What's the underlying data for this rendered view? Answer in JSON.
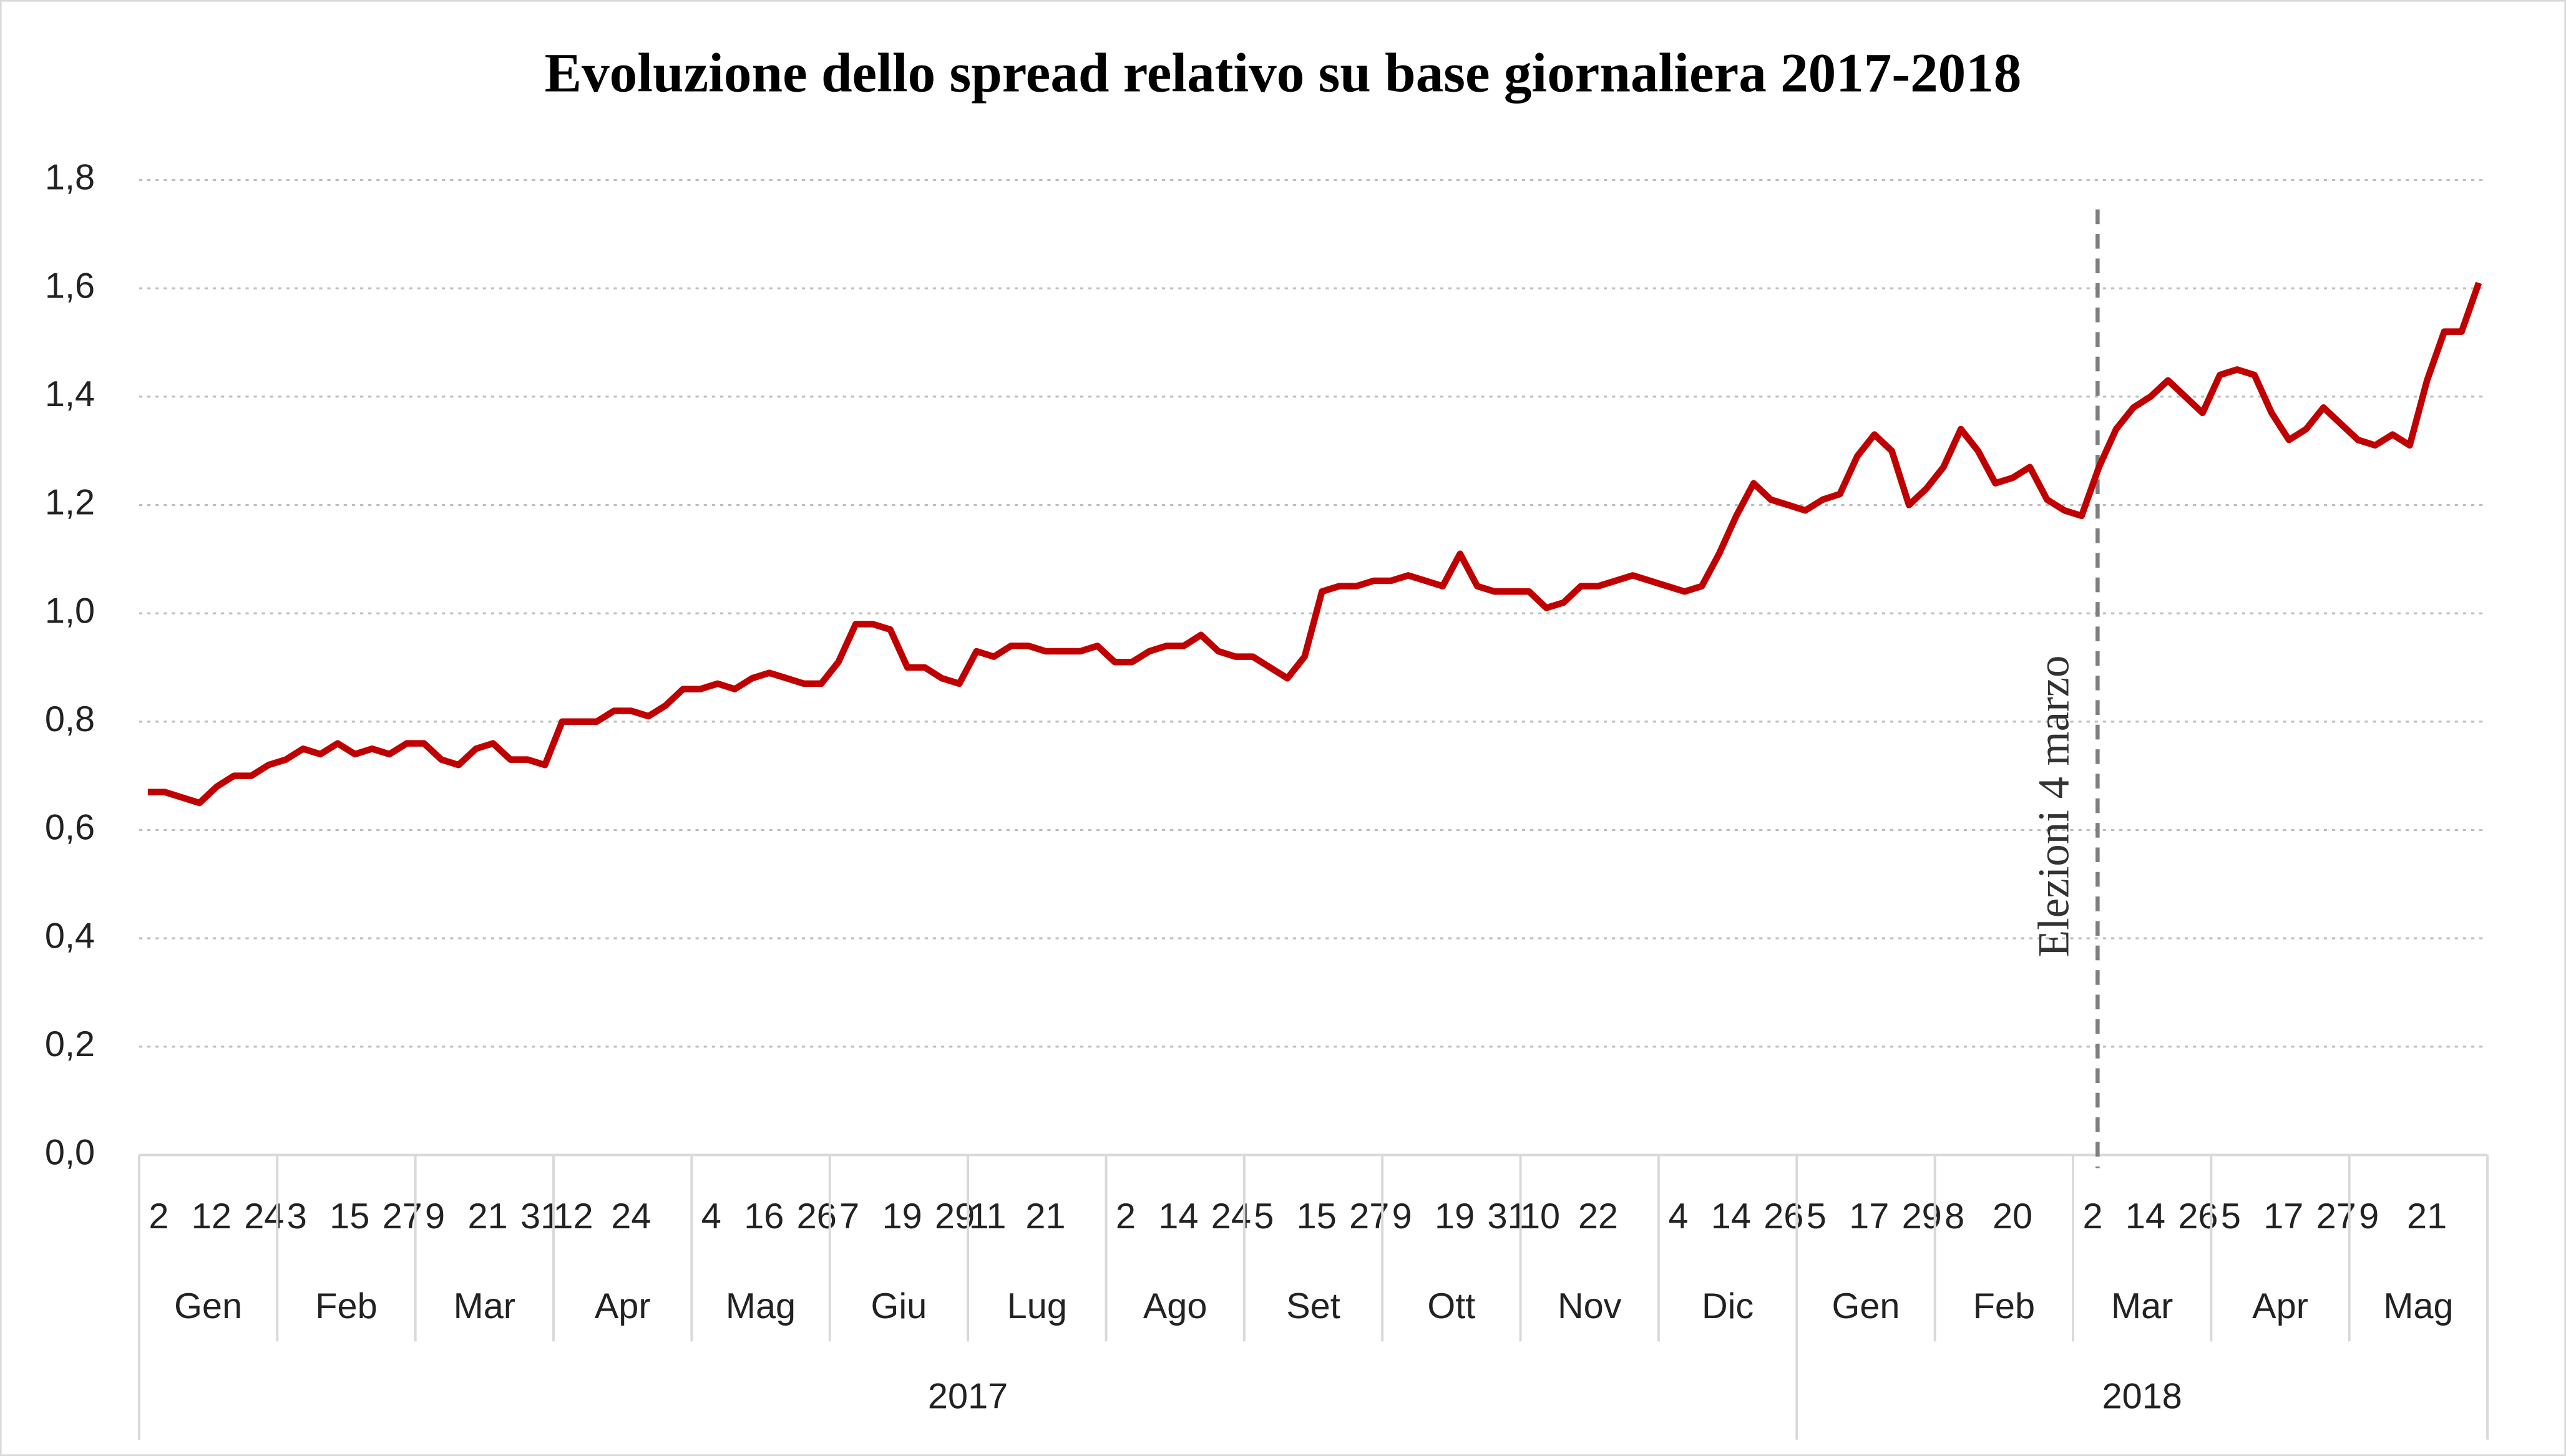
{
  "chart_data": {
    "type": "line",
    "title": "Evoluzione dello spread relativo su base giornaliera 2017-2018",
    "color": "#c00000",
    "ylim": [
      0,
      1.8
    ],
    "yticks": [
      {
        "value": 0,
        "label": "0,0"
      },
      {
        "value": 0.2,
        "label": "0,2"
      },
      {
        "value": 0.4,
        "label": "0,4"
      },
      {
        "value": 0.6,
        "label": "0,6"
      },
      {
        "value": 0.8,
        "label": "0,8"
      },
      {
        "value": 1.0,
        "label": "1,0"
      },
      {
        "value": 1.2,
        "label": "1,2"
      },
      {
        "value": 1.4,
        "label": "1,4"
      },
      {
        "value": 1.6,
        "label": "1,6"
      },
      {
        "value": 1.8,
        "label": "1,8"
      }
    ],
    "grid": true,
    "annotation": "Elezioni 4 marzo",
    "years": [
      {
        "label": "2017",
        "months": [
          {
            "name": "Gen",
            "days": [
              "2",
              "12",
              "24"
            ],
            "values": [
              0.67,
              0.67,
              0.66,
              0.65,
              0.68,
              0.7,
              0.7,
              0.72
            ]
          },
          {
            "name": "Feb",
            "days": [
              "3",
              "15",
              "27"
            ],
            "values": [
              0.73,
              0.75,
              0.74,
              0.76,
              0.74,
              0.75,
              0.74,
              0.76
            ]
          },
          {
            "name": "Mar",
            "days": [
              "9",
              "21",
              "31"
            ],
            "values": [
              0.76,
              0.73,
              0.72,
              0.75,
              0.76,
              0.73,
              0.73,
              0.72
            ]
          },
          {
            "name": "Apr",
            "days": [
              "12",
              "24"
            ],
            "values": [
              0.8,
              0.8,
              0.8,
              0.82,
              0.82,
              0.81,
              0.83,
              0.86
            ]
          },
          {
            "name": "Mag",
            "days": [
              "4",
              "16",
              "26"
            ],
            "values": [
              0.86,
              0.87,
              0.86,
              0.88,
              0.89,
              0.88,
              0.87,
              0.87
            ]
          },
          {
            "name": "Giu",
            "days": [
              "7",
              "19",
              "29"
            ],
            "values": [
              0.91,
              0.98,
              0.98,
              0.97,
              0.9,
              0.9,
              0.88,
              0.87
            ]
          },
          {
            "name": "Lug",
            "days": [
              "11",
              "21"
            ],
            "values": [
              0.93,
              0.92,
              0.94,
              0.94,
              0.93,
              0.93,
              0.93,
              0.94
            ]
          },
          {
            "name": "Ago",
            "days": [
              "2",
              "14",
              "24"
            ],
            "values": [
              0.91,
              0.91,
              0.93,
              0.94,
              0.94,
              0.96,
              0.93,
              0.92
            ]
          },
          {
            "name": "Set",
            "days": [
              "5",
              "15",
              "27"
            ],
            "values": [
              0.92,
              0.9,
              0.88,
              0.92,
              1.04,
              1.05,
              1.05,
              1.06
            ]
          },
          {
            "name": "Ott",
            "days": [
              "9",
              "19",
              "31"
            ],
            "values": [
              1.06,
              1.07,
              1.06,
              1.05,
              1.11,
              1.05,
              1.04,
              1.04
            ]
          },
          {
            "name": "Nov",
            "days": [
              "10",
              "22"
            ],
            "values": [
              1.04,
              1.01,
              1.02,
              1.05,
              1.05,
              1.06,
              1.07,
              1.06
            ]
          },
          {
            "name": "Dic",
            "days": [
              "4",
              "14",
              "26"
            ],
            "values": [
              1.05,
              1.04,
              1.05,
              1.11,
              1.18,
              1.24,
              1.21,
              1.2
            ]
          }
        ]
      },
      {
        "label": "2018",
        "months": [
          {
            "name": "Gen",
            "days": [
              "5",
              "17",
              "29"
            ],
            "values": [
              1.19,
              1.21,
              1.22,
              1.29,
              1.33,
              1.3,
              1.2,
              1.23
            ]
          },
          {
            "name": "Feb",
            "days": [
              "8",
              "20"
            ],
            "values": [
              1.27,
              1.34,
              1.3,
              1.24,
              1.25,
              1.27,
              1.21,
              1.19
            ]
          },
          {
            "name": "Mar",
            "days": [
              "2",
              "14",
              "26"
            ],
            "values": [
              1.18,
              1.27,
              1.34,
              1.38,
              1.4,
              1.43,
              1.4,
              1.37
            ]
          },
          {
            "name": "Apr",
            "days": [
              "5",
              "17",
              "27"
            ],
            "values": [
              1.44,
              1.45,
              1.44,
              1.37,
              1.32,
              1.34,
              1.38,
              1.35
            ]
          },
          {
            "name": "Mag",
            "days": [
              "9",
              "21"
            ],
            "values": [
              1.32,
              1.31,
              1.33,
              1.31,
              1.43,
              1.52,
              1.52,
              1.61
            ]
          }
        ]
      }
    ]
  }
}
